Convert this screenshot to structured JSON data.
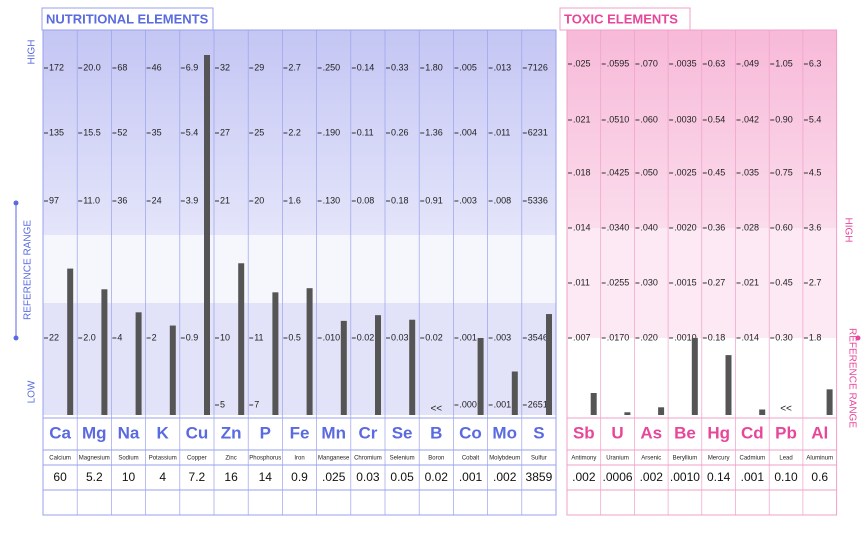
{
  "sections": [
    {
      "title": "NUTRITIONAL ELEMENTS",
      "elements": [
        {
          "symbol": "Ca",
          "name": "Calcium",
          "result": 60,
          "ticks": [
            172,
            135,
            97,
            22,
            null
          ]
        },
        {
          "symbol": "Mg",
          "name": "Magnesium",
          "result": 5.2,
          "ticks": [
            {
              "value": 20,
              "label": "20.0"
            },
            15.5,
            {
              "value": 11,
              "label": "11.0"
            },
            {
              "value": 2,
              "label": "2.0"
            },
            null
          ]
        },
        {
          "symbol": "Na",
          "name": "Sodium",
          "result": 10,
          "ticks": [
            68,
            52,
            36,
            4,
            null
          ]
        },
        {
          "symbol": "K",
          "name": "Potassium",
          "result": 4,
          "ticks": [
            46,
            35,
            24,
            2,
            null
          ]
        },
        {
          "symbol": "Cu",
          "name": "Copper",
          "result": 7.2,
          "ticks": [
            6.9,
            5.4,
            3.9,
            0.9,
            null
          ]
        },
        {
          "symbol": "Zn",
          "name": "Zinc",
          "result": 16,
          "ticks": [
            32,
            27,
            21,
            10,
            5
          ]
        },
        {
          "symbol": "P",
          "name": "Phosphorus",
          "result": 14,
          "ticks": [
            29,
            25,
            20,
            11,
            7
          ]
        },
        {
          "symbol": "Fe",
          "name": "Iron",
          "result": 0.9,
          "ticks": [
            2.7,
            2.2,
            1.6,
            0.5,
            null
          ]
        },
        {
          "symbol": "Mn",
          "name": "Manganese",
          "result": {
            "value": 0.025,
            "label": ".025"
          },
          "ticks": [
            {
              "value": 0.25,
              "label": ".250"
            },
            {
              "value": 0.19,
              "label": ".190"
            },
            {
              "value": 0.13,
              "label": ".130"
            },
            {
              "value": 0.01,
              "label": ".010"
            },
            null
          ]
        },
        {
          "symbol": "Cr",
          "name": "Chromium",
          "result": 0.03,
          "ticks": [
            0.14,
            0.11,
            0.08,
            0.02,
            null
          ]
        },
        {
          "symbol": "Se",
          "name": "Selenium",
          "result": 0.05,
          "ticks": [
            0.33,
            0.26,
            0.18,
            0.03,
            null
          ]
        },
        {
          "symbol": "B",
          "name": "Boron",
          "result": 0.02,
          "marker": "<<",
          "ticks": [
            {
              "value": 1.8,
              "label": "1.80"
            },
            1.36,
            0.91,
            0.02,
            null
          ]
        },
        {
          "symbol": "Co",
          "name": "Cobalt",
          "result": {
            "value": 0.001,
            "label": ".001"
          },
          "ticks": [
            {
              "value": 0.005,
              "label": ".005"
            },
            {
              "value": 0.004,
              "label": ".004"
            },
            {
              "value": 0.003,
              "label": ".003"
            },
            {
              "value": 0.001,
              "label": ".001"
            },
            {
              "value": 0,
              "label": ".000"
            }
          ]
        },
        {
          "symbol": "Mo",
          "name": "Molybdeum",
          "result": {
            "value": 0.002,
            "label": ".002"
          },
          "ticks": [
            {
              "value": 0.013,
              "label": ".013"
            },
            {
              "value": 0.011,
              "label": ".011"
            },
            {
              "value": 0.008,
              "label": ".008"
            },
            {
              "value": 0.003,
              "label": ".003"
            },
            {
              "value": 0.001,
              "label": ".001"
            }
          ]
        },
        {
          "symbol": "S",
          "name": "Sulfur",
          "result": 3859,
          "ticks": [
            7126,
            6231,
            5336,
            3546,
            2651
          ]
        }
      ]
    },
    {
      "title": "TOXIC ELEMENTS",
      "elements": [
        {
          "symbol": "Sb",
          "name": "Antimony",
          "result": {
            "value": 0.002,
            "label": ".002"
          },
          "ticks": [
            {
              "value": 0.025,
              "label": ".025"
            },
            {
              "value": 0.021,
              "label": ".021"
            },
            {
              "value": 0.018,
              "label": ".018"
            },
            {
              "value": 0.014,
              "label": ".014"
            },
            {
              "value": 0.011,
              "label": ".011"
            },
            {
              "value": 0.007,
              "label": ".007"
            }
          ]
        },
        {
          "symbol": "U",
          "name": "Uranium",
          "result": {
            "value": 0.0006,
            "label": ".0006"
          },
          "ticks": [
            {
              "value": 0.0595,
              "label": ".0595"
            },
            {
              "value": 0.051,
              "label": ".0510"
            },
            {
              "value": 0.0425,
              "label": ".0425"
            },
            {
              "value": 0.034,
              "label": ".0340"
            },
            {
              "value": 0.0255,
              "label": ".0255"
            },
            {
              "value": 0.017,
              "label": ".0170"
            }
          ]
        },
        {
          "symbol": "As",
          "name": "Arsenic",
          "result": {
            "value": 0.002,
            "label": ".002"
          },
          "ticks": [
            {
              "value": 0.07,
              "label": ".070"
            },
            {
              "value": 0.06,
              "label": ".060"
            },
            {
              "value": 0.05,
              "label": ".050"
            },
            {
              "value": 0.04,
              "label": ".040"
            },
            {
              "value": 0.03,
              "label": ".030"
            },
            {
              "value": 0.02,
              "label": ".020"
            }
          ]
        },
        {
          "symbol": "Be",
          "name": "Beryllium",
          "result": {
            "value": 0.001,
            "label": ".0010"
          },
          "ticks": [
            {
              "value": 0.0035,
              "label": ".0035"
            },
            {
              "value": 0.003,
              "label": ".0030"
            },
            {
              "value": 0.0025,
              "label": ".0025"
            },
            {
              "value": 0.002,
              "label": ".0020"
            },
            {
              "value": 0.0015,
              "label": ".0015"
            },
            {
              "value": 0.001,
              "label": ".0010"
            }
          ]
        },
        {
          "symbol": "Hg",
          "name": "Mercury",
          "result": 0.14,
          "ticks": [
            0.63,
            0.54,
            0.45,
            0.36,
            0.27,
            0.18
          ]
        },
        {
          "symbol": "Cd",
          "name": "Cadmium",
          "result": {
            "value": 0.001,
            "label": ".001"
          },
          "ticks": [
            {
              "value": 0.049,
              "label": ".049"
            },
            {
              "value": 0.042,
              "label": ".042"
            },
            {
              "value": 0.035,
              "label": ".035"
            },
            {
              "value": 0.028,
              "label": ".028"
            },
            {
              "value": 0.021,
              "label": ".021"
            },
            {
              "value": 0.014,
              "label": ".014"
            }
          ]
        },
        {
          "symbol": "Pb",
          "name": "Lead",
          "result": {
            "value": 0.1,
            "label": "0.10"
          },
          "marker": "<<",
          "ticks": [
            1.05,
            {
              "value": 0.9,
              "label": "0.90"
            },
            0.75,
            {
              "value": 0.6,
              "label": "0.60"
            },
            0.45,
            {
              "value": 0.3,
              "label": "0.30"
            }
          ]
        },
        {
          "symbol": "Al",
          "name": "Aluminum",
          "result": 0.6,
          "ticks": [
            6.3,
            5.4,
            4.5,
            3.6,
            2.7,
            1.8
          ]
        }
      ]
    }
  ],
  "side_labels": {
    "left": [
      "HIGH",
      "REFERENCE RANGE",
      "LOW"
    ],
    "right": [
      "HIGH",
      "REFERENCE RANGE"
    ]
  }
}
